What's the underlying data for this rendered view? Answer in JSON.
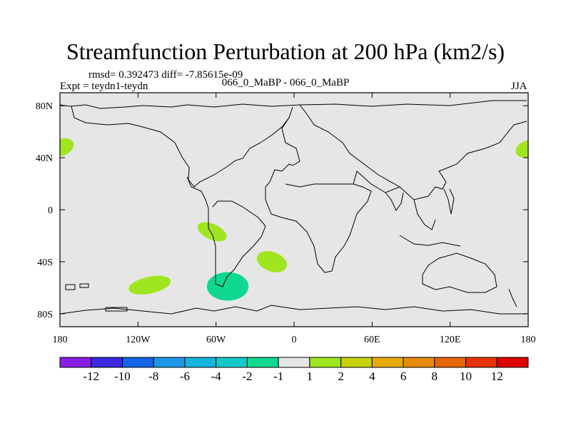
{
  "header": {
    "title": "Streamfunction Perturbation at 200 hPa (km2/s)",
    "stats": "rmsd= 0.392473 diff= -7.85615e-09",
    "expt": "Expt = teydn1-teydn",
    "case": "066_0_MaBP - 066_0_MaBP",
    "season": "JJA"
  },
  "chart_data": {
    "type": "heatmap",
    "title": "Streamfunction Perturbation at 200 hPa (km2/s)",
    "xlabel": "",
    "ylabel": "",
    "xlim": [
      -180,
      180
    ],
    "ylim": [
      -90,
      90
    ],
    "x_ticks": [
      {
        "value": -180,
        "label": "180"
      },
      {
        "value": -120,
        "label": "120W"
      },
      {
        "value": -60,
        "label": "60W"
      },
      {
        "value": 0,
        "label": "0"
      },
      {
        "value": 60,
        "label": "60E"
      },
      {
        "value": 120,
        "label": "120E"
      },
      {
        "value": 180,
        "label": "180"
      }
    ],
    "y_ticks": [
      {
        "value": 80,
        "label": "80N"
      },
      {
        "value": 40,
        "label": "40N"
      },
      {
        "value": 0,
        "label": "0"
      },
      {
        "value": -40,
        "label": "40S"
      },
      {
        "value": -80,
        "label": "80S"
      }
    ],
    "background_value_range": [
      -1,
      1
    ],
    "background_color": "#e6e6e6",
    "features": [
      {
        "name": "positive-anomaly-w-atlantic-edge",
        "lon": -179,
        "lat": 48,
        "rx_deg": 10,
        "ry_deg": 6.5,
        "angle": -20,
        "level": "1 to 2",
        "color": "#a0e620"
      },
      {
        "name": "positive-anomaly-w-pacific-edge",
        "lon": 180,
        "lat": 47,
        "rx_deg": 10,
        "ry_deg": 6.5,
        "angle": -20,
        "level": "1 to 2",
        "color": "#a0e620"
      },
      {
        "name": "positive-anomaly-s-america",
        "lon": -63,
        "lat": -17,
        "rx_deg": 12,
        "ry_deg": 6,
        "angle": 25,
        "level": "1 to 2",
        "color": "#a0e620"
      },
      {
        "name": "positive-anomaly-s-atlantic",
        "lon": -17,
        "lat": -40,
        "rx_deg": 12,
        "ry_deg": 7.5,
        "angle": 20,
        "level": "1 to 2",
        "color": "#a0e620"
      },
      {
        "name": "positive-anomaly-s-pacific",
        "lon": -111,
        "lat": -58,
        "rx_deg": 16.5,
        "ry_deg": 6.5,
        "angle": -12,
        "level": "1 to 2",
        "color": "#a0e620"
      },
      {
        "name": "negative-anomaly-drake-passage",
        "lon": -51,
        "lat": -59,
        "rx_deg": 16,
        "ry_deg": 11,
        "angle": 0,
        "level": "-2 to -1",
        "color": "#10d890"
      }
    ],
    "colorbar": {
      "labels": [
        "-12",
        "-10",
        "-8",
        "-6",
        "-4",
        "-2",
        "-1",
        "1",
        "2",
        "4",
        "6",
        "8",
        "10",
        "12"
      ],
      "colors": [
        "#8a1ee6",
        "#3c28e0",
        "#1464e6",
        "#1e96e6",
        "#14b4dc",
        "#14c8c8",
        "#10d890",
        "#e6e6e6",
        "#a0e620",
        "#c8d20a",
        "#e6aa0a",
        "#e68c0a",
        "#e6640a",
        "#e6320a",
        "#dc0000"
      ]
    },
    "grid": false
  }
}
